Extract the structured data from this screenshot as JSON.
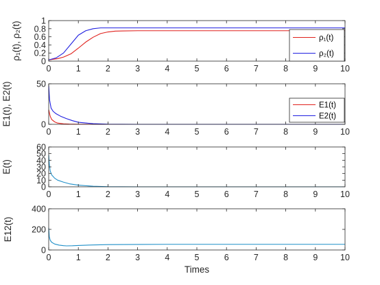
{
  "chart_data": [
    {
      "type": "line",
      "id": "rho",
      "ylabel": "ρ₁(t), ρ₂(t)",
      "xlabel": "",
      "xlim": [
        0,
        10
      ],
      "ylim": [
        0,
        1
      ],
      "xticks": [
        "0",
        "1",
        "2",
        "3",
        "4",
        "5",
        "6",
        "7",
        "8",
        "9",
        "10"
      ],
      "yticks": [
        "0",
        "0.2",
        "0.4",
        "0.6",
        "0.8",
        "1"
      ],
      "grid": false,
      "legend": "top-right",
      "series": [
        {
          "name": "ρ₁(t)",
          "color": "#e0201b",
          "x": [
            0,
            0.3,
            0.5,
            0.75,
            1,
            1.25,
            1.5,
            1.75,
            2,
            2.25,
            2.5,
            3,
            4,
            6,
            10
          ],
          "y": [
            0.03,
            0.06,
            0.1,
            0.18,
            0.32,
            0.47,
            0.59,
            0.68,
            0.72,
            0.74,
            0.745,
            0.75,
            0.75,
            0.75,
            0.75
          ]
        },
        {
          "name": "ρ₂(t)",
          "color": "#1f1fe0",
          "x": [
            0,
            0.25,
            0.5,
            0.75,
            1,
            1.25,
            1.5,
            1.75,
            2,
            3,
            6,
            10
          ],
          "y": [
            0.03,
            0.08,
            0.2,
            0.42,
            0.64,
            0.75,
            0.8,
            0.82,
            0.82,
            0.82,
            0.82,
            0.82
          ]
        }
      ]
    },
    {
      "type": "line",
      "id": "E1E2",
      "ylabel": "E1(t), E2(t)",
      "xlabel": "",
      "xlim": [
        0,
        10
      ],
      "ylim": [
        0,
        50
      ],
      "xticks": [
        "0",
        "1",
        "2",
        "3",
        "4",
        "5",
        "6",
        "7",
        "8",
        "9",
        "10"
      ],
      "yticks": [
        "0",
        "50"
      ],
      "grid": false,
      "legend": "top-right",
      "series": [
        {
          "name": "E1(t)",
          "color": "#e0201b",
          "x": [
            0,
            0.05,
            0.1,
            0.2,
            0.3,
            0.5,
            0.7,
            1,
            2,
            10
          ],
          "y": [
            18,
            10,
            6,
            3,
            1.5,
            0.6,
            0.3,
            0.1,
            0,
            0
          ]
        },
        {
          "name": "E2(t)",
          "color": "#1f1fe0",
          "x": [
            0,
            0.03,
            0.08,
            0.15,
            0.25,
            0.4,
            0.6,
            0.8,
            1,
            1.5,
            2,
            3,
            10
          ],
          "y": [
            48,
            30,
            20,
            16,
            13,
            10,
            7,
            4.5,
            2.5,
            0.8,
            0.2,
            0,
            0
          ]
        }
      ]
    },
    {
      "type": "line",
      "id": "E",
      "ylabel": "E(t)",
      "xlabel": "",
      "xlim": [
        0,
        10
      ],
      "ylim": [
        0,
        60
      ],
      "xticks": [
        "0",
        "1",
        "2",
        "3",
        "4",
        "5",
        "6",
        "7",
        "8",
        "9",
        "10"
      ],
      "yticks": [
        "0",
        "10",
        "20",
        "30",
        "40",
        "50",
        "60"
      ],
      "grid": false,
      "series": [
        {
          "color": "#1f8fc8",
          "x": [
            0,
            0.02,
            0.05,
            0.1,
            0.2,
            0.3,
            0.5,
            0.7,
            1,
            1.5,
            2,
            3,
            10
          ],
          "y": [
            48,
            35,
            24,
            18,
            13,
            10,
            7,
            4.5,
            2.5,
            0.8,
            0.2,
            0,
            0
          ]
        }
      ]
    },
    {
      "type": "line",
      "id": "E12",
      "ylabel": "E12(t)",
      "xlabel": "Times",
      "xlim": [
        0,
        10
      ],
      "ylim": [
        0,
        400
      ],
      "xticks": [
        "0",
        "1",
        "2",
        "3",
        "4",
        "5",
        "6",
        "7",
        "8",
        "9",
        "10"
      ],
      "yticks": [
        "0",
        "200",
        "400"
      ],
      "grid": false,
      "series": [
        {
          "color": "#1f8fc8",
          "x": [
            0,
            0.02,
            0.05,
            0.1,
            0.2,
            0.35,
            0.5,
            0.6,
            0.8,
            1,
            1.5,
            2,
            3,
            4,
            6,
            10
          ],
          "y": [
            215,
            130,
            95,
            75,
            58,
            47,
            42,
            40,
            41,
            44,
            49,
            52,
            54,
            55,
            55,
            55
          ]
        }
      ]
    }
  ]
}
